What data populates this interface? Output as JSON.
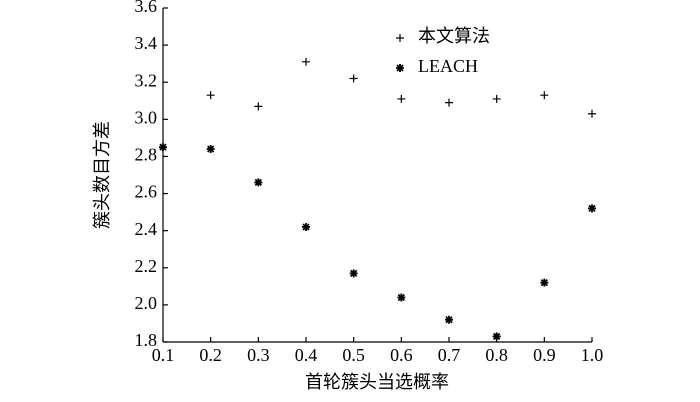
{
  "chart_data": {
    "type": "scatter",
    "x_label": "首轮簇头当选概率",
    "y_label": "簇头数目方差",
    "x": [
      0.1,
      0.2,
      0.3,
      0.4,
      0.5,
      0.6,
      0.7,
      0.8,
      0.9,
      1.0
    ],
    "series": [
      {
        "name": "本文算法",
        "marker": "plus",
        "color": "#000000",
        "values": [
          null,
          3.13,
          3.07,
          3.31,
          3.22,
          3.11,
          3.09,
          3.11,
          3.13,
          3.03
        ]
      },
      {
        "name": "LEACH",
        "marker": "star",
        "color": "#000000",
        "values": [
          2.85,
          2.84,
          2.66,
          2.42,
          2.17,
          2.04,
          1.92,
          1.83,
          2.12,
          2.52
        ]
      }
    ],
    "xlim": [
      0.1,
      1.0
    ],
    "ylim": [
      1.8,
      3.6
    ],
    "xticks": [
      0.1,
      0.2,
      0.3,
      0.4,
      0.5,
      0.6,
      0.7,
      0.8,
      0.9,
      {
        "value": 1.0,
        "label": "1.0"
      }
    ],
    "yticks": [
      1.8,
      {
        "value": 2.0,
        "label": "2.0"
      },
      2.2,
      2.4,
      2.6,
      2.8,
      {
        "value": 3.0,
        "label": "3.0"
      },
      3.2,
      3.4,
      3.6
    ],
    "legend": "upper right"
  }
}
